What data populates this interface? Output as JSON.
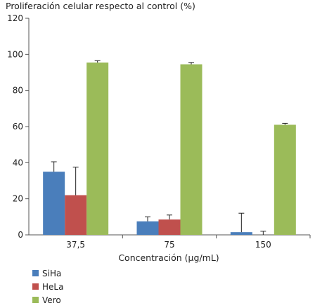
{
  "chart_data": {
    "type": "bar",
    "title": "Proliferación celular respecto al control (%)",
    "xlabel": "Concentración (µg/mL)",
    "ylabel": "",
    "ylim": [
      0,
      120
    ],
    "yticks": [
      0,
      20,
      40,
      60,
      80,
      100,
      120
    ],
    "categories": [
      "37,5",
      "75",
      "150"
    ],
    "series": [
      {
        "name": "SiHa",
        "color": "#4a7ebb",
        "values": [
          35,
          7.5,
          1.5
        ],
        "errors": [
          5.5,
          2.5,
          10.5
        ]
      },
      {
        "name": "HeLa",
        "color": "#c0504d",
        "values": [
          22,
          8.5,
          0
        ],
        "errors": [
          15.5,
          2.5,
          2
        ]
      },
      {
        "name": "Vero",
        "color": "#9bbb59",
        "values": [
          95.5,
          94.5,
          61
        ],
        "errors": [
          1,
          1,
          0.8
        ]
      }
    ],
    "legend_position": "bottom-left",
    "grid": false
  }
}
